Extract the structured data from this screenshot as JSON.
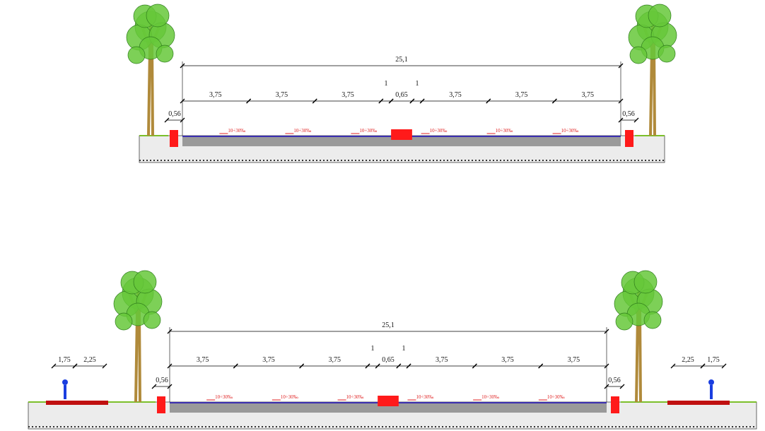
{
  "sections": [
    {
      "total": "25,1",
      "lanes_left": [
        "3,75",
        "3,75",
        "3,75"
      ],
      "gap_left": "1",
      "median": "0,65",
      "gap_right": "1",
      "lanes_right": [
        "3,75",
        "3,75",
        "3,75"
      ],
      "curb_left": "0,56",
      "curb_right": "0,56",
      "slopes": [
        "10÷30‰",
        "10÷30‰",
        "10÷30‰",
        "10÷30‰",
        "10÷30‰",
        "10÷30‰"
      ]
    },
    {
      "total": "25,1",
      "lanes_left": [
        "3,75",
        "3,75",
        "3,75"
      ],
      "gap_left": "1",
      "median": "0,65",
      "gap_right": "1",
      "lanes_right": [
        "3,75",
        "3,75",
        "3,75"
      ],
      "curb_left": "0,56",
      "curb_right": "0,56",
      "slopes": [
        "10÷30‰",
        "10÷30‰",
        "10÷30‰",
        "10÷30‰",
        "10÷30‰",
        "10÷30‰"
      ],
      "sidewalk_left": [
        "1,75",
        "2,25"
      ],
      "sidewalk_right": [
        "2,25",
        "1,75"
      ]
    }
  ]
}
